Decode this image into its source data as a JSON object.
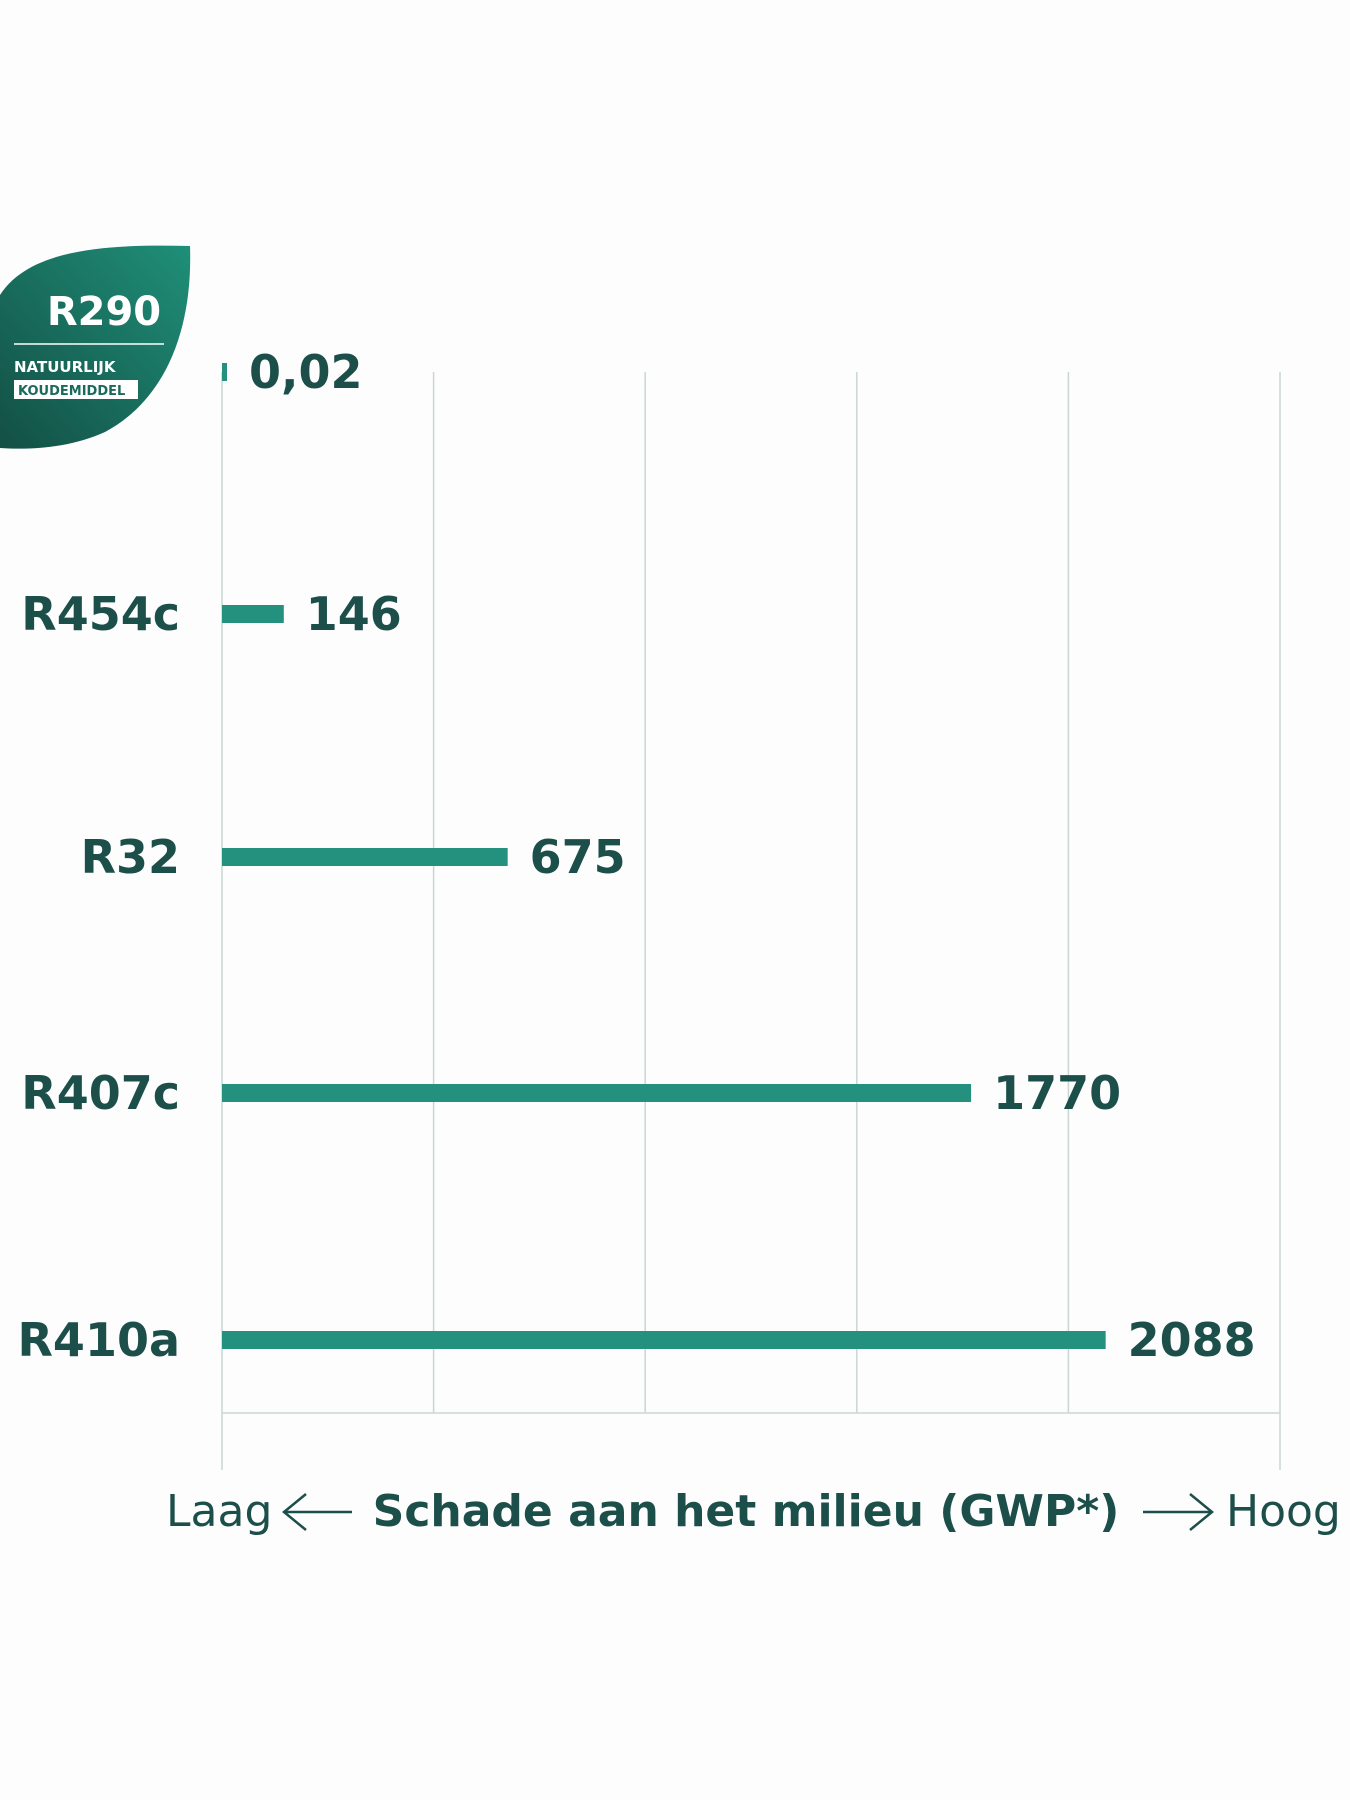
{
  "chart_data": {
    "type": "bar",
    "orientation": "horizontal",
    "categories": [
      "R290",
      "R454c",
      "R32",
      "R407c",
      "R410a"
    ],
    "values": [
      0.02,
      146,
      675,
      1770,
      2088
    ],
    "value_labels": [
      "0,02",
      "146",
      "675",
      "1770",
      "2088"
    ],
    "xlim": [
      0,
      2500
    ],
    "grid": true,
    "xlabel": "Schade aan het milieu (GWP*)",
    "low_label": "Laag",
    "high_label": "Hoog",
    "colors": {
      "bar": "#23917d",
      "text": "#1d4f4a",
      "grid": "#c9d7d3"
    }
  },
  "badge": {
    "title": "R290",
    "line1": "NATUURLIJK",
    "line2": "KOUDEMIDDEL",
    "color": "#1b7a67"
  }
}
